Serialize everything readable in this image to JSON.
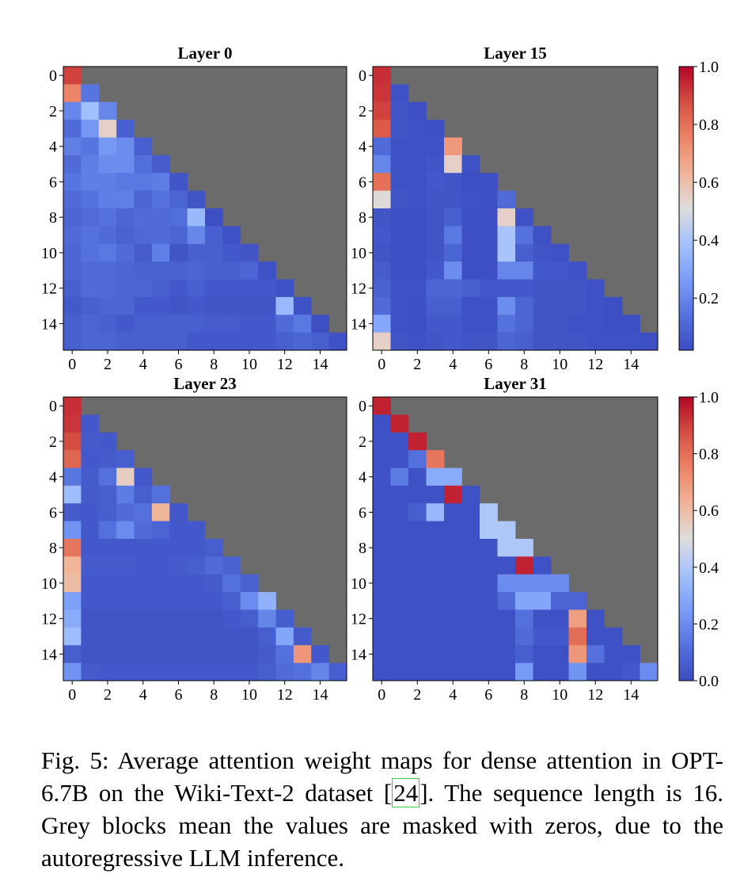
{
  "chart_data": [
    {
      "type": "heatmap",
      "title": "Layer 0",
      "x_ticks": [
        "0",
        "2",
        "4",
        "6",
        "8",
        "10",
        "12",
        "14"
      ],
      "y_ticks": [
        "0",
        "2",
        "4",
        "6",
        "8",
        "10",
        "12",
        "14"
      ],
      "masked_color": "#6b6b6b",
      "values": [
        [
          0.9
        ],
        [
          0.75,
          0.15
        ],
        [
          0.2,
          0.38,
          0.2
        ],
        [
          0.12,
          0.25,
          0.55,
          0.08
        ],
        [
          0.18,
          0.15,
          0.25,
          0.22,
          0.08
        ],
        [
          0.12,
          0.18,
          0.22,
          0.22,
          0.13,
          0.07
        ],
        [
          0.15,
          0.18,
          0.18,
          0.16,
          0.16,
          0.17,
          0.05
        ],
        [
          0.12,
          0.14,
          0.18,
          0.18,
          0.1,
          0.14,
          0.1,
          0.05
        ],
        [
          0.1,
          0.12,
          0.14,
          0.1,
          0.12,
          0.12,
          0.13,
          0.36,
          0.03
        ],
        [
          0.12,
          0.14,
          0.12,
          0.09,
          0.11,
          0.12,
          0.1,
          0.2,
          0.08,
          0.04
        ],
        [
          0.1,
          0.14,
          0.16,
          0.12,
          0.07,
          0.18,
          0.05,
          0.08,
          0.08,
          0.06,
          0.05
        ],
        [
          0.1,
          0.12,
          0.12,
          0.1,
          0.09,
          0.09,
          0.09,
          0.1,
          0.08,
          0.08,
          0.1,
          0.04
        ],
        [
          0.08,
          0.12,
          0.12,
          0.1,
          0.1,
          0.08,
          0.06,
          0.08,
          0.06,
          0.06,
          0.06,
          0.06,
          0.04
        ],
        [
          0.06,
          0.08,
          0.1,
          0.1,
          0.06,
          0.06,
          0.05,
          0.06,
          0.05,
          0.05,
          0.05,
          0.05,
          0.36,
          0.04
        ],
        [
          0.08,
          0.1,
          0.08,
          0.06,
          0.08,
          0.08,
          0.08,
          0.08,
          0.07,
          0.07,
          0.06,
          0.06,
          0.12,
          0.16,
          0.03
        ],
        [
          0.08,
          0.1,
          0.1,
          0.08,
          0.08,
          0.08,
          0.08,
          0.06,
          0.06,
          0.06,
          0.06,
          0.06,
          0.08,
          0.1,
          0.08,
          0.04
        ]
      ]
    },
    {
      "type": "heatmap",
      "title": "Layer 15",
      "x_ticks": [
        "0",
        "2",
        "4",
        "6",
        "8",
        "10",
        "12",
        "14"
      ],
      "y_ticks": [
        "0",
        "2",
        "4",
        "6",
        "8",
        "10",
        "12",
        "14"
      ],
      "masked_color": "#6b6b6b",
      "values": [
        [
          0.93
        ],
        [
          0.92,
          0.04
        ],
        [
          0.9,
          0.05,
          0.03
        ],
        [
          0.85,
          0.05,
          0.04,
          0.03
        ],
        [
          0.12,
          0.04,
          0.04,
          0.04,
          0.7
        ],
        [
          0.2,
          0.04,
          0.04,
          0.05,
          0.55,
          0.04
        ],
        [
          0.8,
          0.04,
          0.04,
          0.06,
          0.05,
          0.03,
          0.03
        ],
        [
          0.52,
          0.05,
          0.04,
          0.05,
          0.05,
          0.04,
          0.03,
          0.12
        ],
        [
          0.05,
          0.03,
          0.03,
          0.05,
          0.08,
          0.03,
          0.03,
          0.55,
          0.04
        ],
        [
          0.06,
          0.03,
          0.03,
          0.05,
          0.16,
          0.03,
          0.03,
          0.4,
          0.14,
          0.04
        ],
        [
          0.05,
          0.03,
          0.03,
          0.05,
          0.1,
          0.03,
          0.03,
          0.4,
          0.08,
          0.05,
          0.04
        ],
        [
          0.07,
          0.03,
          0.03,
          0.06,
          0.22,
          0.03,
          0.03,
          0.2,
          0.2,
          0.06,
          0.06,
          0.04
        ],
        [
          0.09,
          0.04,
          0.04,
          0.1,
          0.1,
          0.08,
          0.06,
          0.06,
          0.06,
          0.05,
          0.05,
          0.05,
          0.04
        ],
        [
          0.12,
          0.04,
          0.03,
          0.08,
          0.08,
          0.04,
          0.04,
          0.22,
          0.1,
          0.05,
          0.05,
          0.05,
          0.04,
          0.03
        ],
        [
          0.3,
          0.04,
          0.03,
          0.06,
          0.06,
          0.04,
          0.04,
          0.14,
          0.1,
          0.05,
          0.05,
          0.04,
          0.04,
          0.03,
          0.03
        ],
        [
          0.55,
          0.05,
          0.04,
          0.05,
          0.06,
          0.05,
          0.05,
          0.1,
          0.08,
          0.05,
          0.05,
          0.05,
          0.04,
          0.04,
          0.04,
          0.03
        ]
      ]
    },
    {
      "type": "heatmap",
      "title": "Layer 23",
      "x_ticks": [
        "0",
        "2",
        "4",
        "6",
        "8",
        "10",
        "12",
        "14"
      ],
      "y_ticks": [
        "0",
        "2",
        "4",
        "6",
        "8",
        "10",
        "12",
        "14"
      ],
      "masked_color": "#6b6b6b",
      "values": [
        [
          0.93
        ],
        [
          0.92,
          0.04
        ],
        [
          0.88,
          0.05,
          0.04
        ],
        [
          0.82,
          0.04,
          0.05,
          0.06
        ],
        [
          0.14,
          0.05,
          0.12,
          0.55,
          0.04
        ],
        [
          0.36,
          0.05,
          0.06,
          0.15,
          0.06,
          0.12
        ],
        [
          0.05,
          0.04,
          0.06,
          0.1,
          0.12,
          0.62,
          0.04
        ],
        [
          0.22,
          0.04,
          0.12,
          0.2,
          0.1,
          0.08,
          0.04,
          0.04
        ],
        [
          0.78,
          0.04,
          0.04,
          0.04,
          0.04,
          0.04,
          0.04,
          0.04,
          0.06
        ],
        [
          0.62,
          0.05,
          0.05,
          0.05,
          0.04,
          0.04,
          0.05,
          0.06,
          0.1,
          0.07
        ],
        [
          0.6,
          0.04,
          0.04,
          0.04,
          0.04,
          0.04,
          0.04,
          0.04,
          0.05,
          0.12,
          0.07
        ],
        [
          0.26,
          0.04,
          0.04,
          0.04,
          0.04,
          0.04,
          0.04,
          0.04,
          0.04,
          0.06,
          0.2,
          0.32
        ],
        [
          0.3,
          0.03,
          0.03,
          0.03,
          0.03,
          0.03,
          0.03,
          0.03,
          0.03,
          0.04,
          0.06,
          0.18,
          0.06
        ],
        [
          0.36,
          0.03,
          0.03,
          0.03,
          0.03,
          0.03,
          0.03,
          0.03,
          0.03,
          0.03,
          0.03,
          0.06,
          0.28,
          0.05
        ],
        [
          0.06,
          0.03,
          0.03,
          0.03,
          0.03,
          0.03,
          0.03,
          0.03,
          0.03,
          0.03,
          0.03,
          0.05,
          0.12,
          0.7,
          0.04
        ],
        [
          0.22,
          0.05,
          0.04,
          0.04,
          0.04,
          0.04,
          0.04,
          0.04,
          0.04,
          0.04,
          0.04,
          0.06,
          0.1,
          0.12,
          0.18,
          0.06
        ]
      ]
    },
    {
      "type": "heatmap",
      "title": "Layer 31",
      "x_ticks": [
        "0",
        "2",
        "4",
        "6",
        "8",
        "10",
        "12",
        "14"
      ],
      "y_ticks": [
        "0",
        "2",
        "4",
        "6",
        "8",
        "10",
        "12",
        "14"
      ],
      "masked_color": "#6b6b6b",
      "values": [
        [
          0.95
        ],
        [
          0.02,
          0.95
        ],
        [
          0.02,
          0.02,
          0.95
        ],
        [
          0.02,
          0.02,
          0.12,
          0.78
        ],
        [
          0.02,
          0.15,
          0.02,
          0.3,
          0.3
        ],
        [
          0.02,
          0.02,
          0.02,
          0.02,
          0.95,
          0.02
        ],
        [
          0.02,
          0.02,
          0.06,
          0.34,
          0.02,
          0.02,
          0.4
        ],
        [
          0.02,
          0.02,
          0.02,
          0.02,
          0.02,
          0.02,
          0.4,
          0.4
        ],
        [
          0.02,
          0.02,
          0.02,
          0.02,
          0.02,
          0.02,
          0.02,
          0.4,
          0.4
        ],
        [
          0.02,
          0.02,
          0.02,
          0.02,
          0.02,
          0.02,
          0.02,
          0.02,
          0.95,
          0.02
        ],
        [
          0.02,
          0.02,
          0.02,
          0.02,
          0.02,
          0.02,
          0.02,
          0.2,
          0.2,
          0.2,
          0.2
        ],
        [
          0.02,
          0.02,
          0.02,
          0.02,
          0.02,
          0.02,
          0.02,
          0.1,
          0.28,
          0.28,
          0.08,
          0.08
        ],
        [
          0.02,
          0.02,
          0.02,
          0.02,
          0.02,
          0.02,
          0.02,
          0.02,
          0.12,
          0.02,
          0.02,
          0.68,
          0.02
        ],
        [
          0.02,
          0.02,
          0.02,
          0.02,
          0.02,
          0.02,
          0.02,
          0.02,
          0.1,
          0.04,
          0.04,
          0.8,
          0.02,
          0.02
        ],
        [
          0.02,
          0.02,
          0.02,
          0.02,
          0.02,
          0.02,
          0.02,
          0.02,
          0.06,
          0.02,
          0.02,
          0.7,
          0.12,
          0.02,
          0.02
        ],
        [
          0.02,
          0.02,
          0.02,
          0.02,
          0.02,
          0.02,
          0.02,
          0.02,
          0.24,
          0.02,
          0.02,
          0.22,
          0.02,
          0.02,
          0.04,
          0.2
        ]
      ]
    }
  ],
  "colorbars": [
    {
      "ticks": [
        "1.0",
        "0.8",
        "0.6",
        "0.4",
        "0.2"
      ],
      "range": [
        0.02,
        1.0
      ]
    },
    {
      "ticks": [
        "1.0",
        "0.8",
        "0.6",
        "0.4",
        "0.2",
        "0.0"
      ],
      "range": [
        0.0,
        1.0
      ]
    }
  ],
  "caption": {
    "before": "Fig. 5: Average attention weight maps for dense attention in OPT-6.7B on the Wiki-Text-2 dataset [",
    "citation": "24",
    "after": "]. The sequence length is 16. Grey blocks mean the values are masked with zeros, due to the autoregressive LLM inference."
  }
}
